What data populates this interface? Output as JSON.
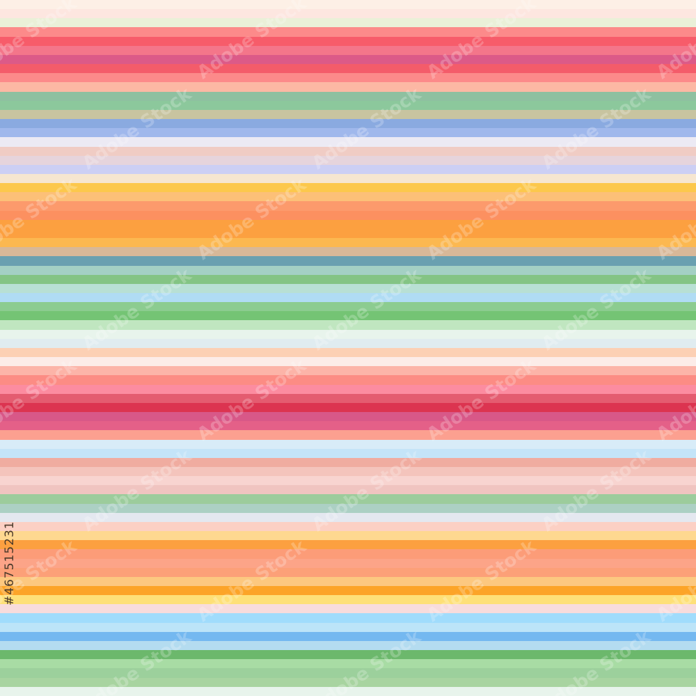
{
  "image": {
    "stock_id": "#467515231",
    "watermark": "Adobe Stock",
    "stripe_colors": [
      "#fdf0e6",
      "#fde6e0",
      "#eaf0d8",
      "#fc8a8a",
      "#f75c6a",
      "#f4768a",
      "#dc5a88",
      "#f45c6a",
      "#fc8a8a",
      "#fcb8a4",
      "#8ec0a0",
      "#8cc89c",
      "#c8c4a0",
      "#8aaae0",
      "#a0b8ec",
      "#eceaf4",
      "#f0ccc4",
      "#e6d4dc",
      "#cccff4",
      "#f6e6d0",
      "#fcc84c",
      "#fcc078",
      "#fc9a6c",
      "#fc9060",
      "#fca040",
      "#fca040",
      "#fcb850",
      "#d8b898",
      "#6aa0b0",
      "#a4d0c4",
      "#84c484",
      "#b8e0d4",
      "#b0dcf4",
      "#8ccc90",
      "#74c474",
      "#c0e6c0",
      "#e8f4ec",
      "#e0ecf0",
      "#fcd0b4",
      "#fcece8",
      "#fcb4a8",
      "#fc8c84",
      "#fc8ca0",
      "#e45c70",
      "#dc3450",
      "#d85888",
      "#e46088",
      "#fca090",
      "#d8ecf8",
      "#c4e4f8",
      "#f0aca0",
      "#f4c4bc",
      "#f8d4d0",
      "#f0c4c0",
      "#9ccc9c",
      "#acd0c4",
      "#e4e8f0",
      "#fcd0c4",
      "#fed890",
      "#fca040",
      "#fc9c78",
      "#fca488",
      "#fca078",
      "#fcc880",
      "#fca428",
      "#fee078",
      "#f8dcdc",
      "#a0dcfc",
      "#bce4f8",
      "#74b8f0",
      "#b4dcf0",
      "#6cb86c",
      "#a8dca4",
      "#9cd09c",
      "#a8d4a0",
      "#e8f4ec"
    ]
  }
}
